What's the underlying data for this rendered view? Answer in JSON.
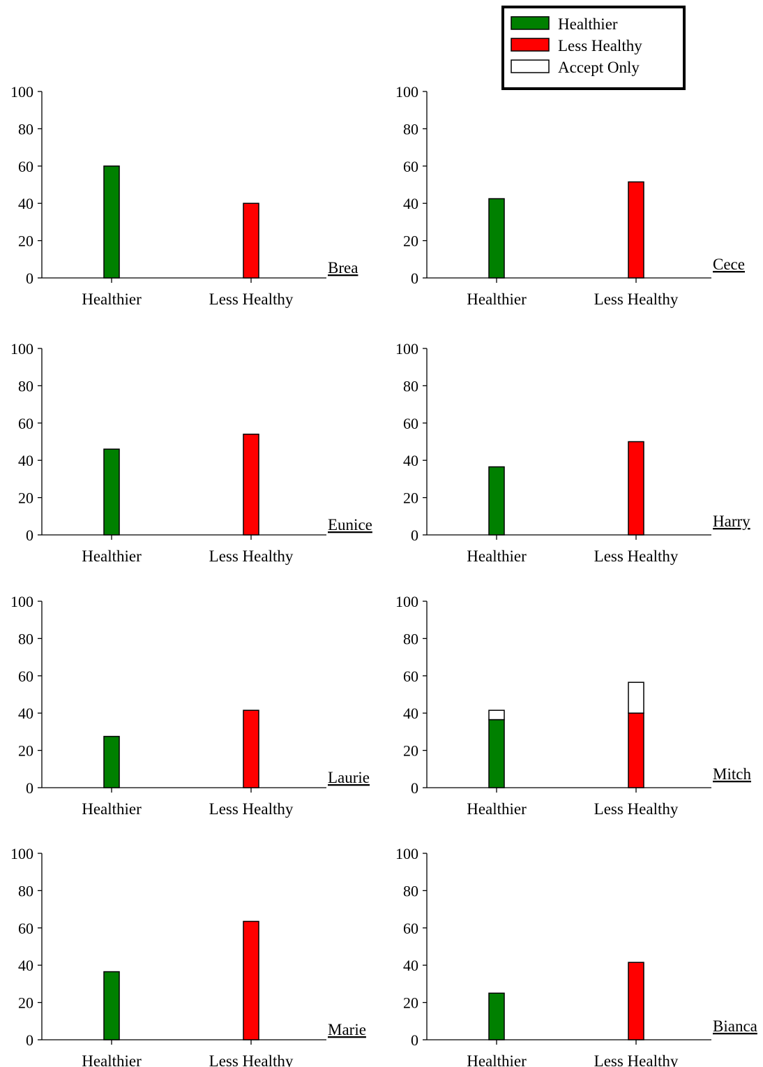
{
  "legend": [
    {
      "label": "Healthier",
      "color": "#008000"
    },
    {
      "label": "Less Healthy",
      "color": "#ff0000"
    },
    {
      "label": "Accept Only",
      "color": "#ffffff"
    }
  ],
  "chart_data": [
    {
      "type": "bar",
      "name": "Brea",
      "categories": [
        "Healthier",
        "Less Healthy"
      ],
      "series": [
        {
          "name": "Healthier",
          "values": [
            60,
            null
          ]
        },
        {
          "name": "Less Healthy",
          "values": [
            null,
            40
          ]
        },
        {
          "name": "Accept Only",
          "values": [
            0,
            0
          ]
        }
      ],
      "ylim": [
        0,
        100
      ],
      "yticks": [
        0,
        20,
        40,
        60,
        80,
        100
      ]
    },
    {
      "type": "bar",
      "name": "Cece",
      "categories": [
        "Healthier",
        "Less Healthy"
      ],
      "series": [
        {
          "name": "Healthier",
          "values": [
            42.5,
            null
          ]
        },
        {
          "name": "Less Healthy",
          "values": [
            null,
            51.5
          ]
        },
        {
          "name": "Accept Only",
          "values": [
            0,
            0
          ]
        }
      ],
      "ylim": [
        0,
        100
      ],
      "yticks": [
        0,
        20,
        40,
        60,
        80,
        100
      ]
    },
    {
      "type": "bar",
      "name": "Eunice",
      "categories": [
        "Healthier",
        "Less Healthy"
      ],
      "series": [
        {
          "name": "Healthier",
          "values": [
            46,
            null
          ]
        },
        {
          "name": "Less Healthy",
          "values": [
            null,
            54
          ]
        },
        {
          "name": "Accept Only",
          "values": [
            0,
            0
          ]
        }
      ],
      "ylim": [
        0,
        100
      ],
      "yticks": [
        0,
        20,
        40,
        60,
        80,
        100
      ]
    },
    {
      "type": "bar",
      "name": "Harry",
      "categories": [
        "Healthier",
        "Less Healthy"
      ],
      "series": [
        {
          "name": "Healthier",
          "values": [
            36.5,
            null
          ]
        },
        {
          "name": "Less Healthy",
          "values": [
            null,
            50
          ]
        },
        {
          "name": "Accept Only",
          "values": [
            0,
            0
          ]
        }
      ],
      "ylim": [
        0,
        100
      ],
      "yticks": [
        0,
        20,
        40,
        60,
        80,
        100
      ]
    },
    {
      "type": "bar",
      "name": "Laurie",
      "categories": [
        "Healthier",
        "Less Healthy"
      ],
      "series": [
        {
          "name": "Healthier",
          "values": [
            27.5,
            null
          ]
        },
        {
          "name": "Less Healthy",
          "values": [
            null,
            41.5
          ]
        },
        {
          "name": "Accept Only",
          "values": [
            0,
            0
          ]
        }
      ],
      "ylim": [
        0,
        100
      ],
      "yticks": [
        0,
        20,
        40,
        60,
        80,
        100
      ]
    },
    {
      "type": "bar",
      "name": "Mitch",
      "categories": [
        "Healthier",
        "Less Healthy"
      ],
      "series": [
        {
          "name": "Healthier",
          "values": [
            36.5,
            null
          ]
        },
        {
          "name": "Less Healthy",
          "values": [
            null,
            40
          ]
        },
        {
          "name": "Accept Only",
          "values": [
            5,
            16.5
          ]
        }
      ],
      "ylim": [
        0,
        100
      ],
      "yticks": [
        0,
        20,
        40,
        60,
        80,
        100
      ]
    },
    {
      "type": "bar",
      "name": "Marie",
      "categories": [
        "Healthier",
        "Less Healthy"
      ],
      "series": [
        {
          "name": "Healthier",
          "values": [
            36.5,
            null
          ]
        },
        {
          "name": "Less Healthy",
          "values": [
            null,
            63.5
          ]
        },
        {
          "name": "Accept Only",
          "values": [
            0,
            0
          ]
        }
      ],
      "ylim": [
        0,
        100
      ],
      "yticks": [
        0,
        20,
        40,
        60,
        80,
        100
      ]
    },
    {
      "type": "bar",
      "name": "Bianca",
      "categories": [
        "Healthier",
        "Less Healthy"
      ],
      "series": [
        {
          "name": "Healthier",
          "values": [
            25,
            null
          ]
        },
        {
          "name": "Less Healthy",
          "values": [
            null,
            41.5
          ]
        },
        {
          "name": "Accept Only",
          "values": [
            0,
            0
          ]
        }
      ],
      "ylim": [
        0,
        100
      ],
      "yticks": [
        0,
        20,
        40,
        60,
        80,
        100
      ]
    }
  ]
}
